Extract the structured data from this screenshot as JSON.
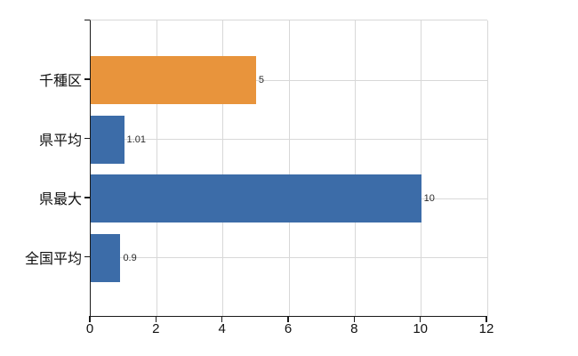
{
  "chart_data": {
    "type": "bar",
    "orientation": "horizontal",
    "title": "",
    "xlabel": "",
    "ylabel": "",
    "categories": [
      "千種区",
      "県平均",
      "県最大",
      "全国平均"
    ],
    "values": [
      5,
      1.01,
      10,
      0.9
    ],
    "value_labels": [
      "5",
      "1.01",
      "10",
      "0.9"
    ],
    "series": [
      {
        "name": "値",
        "values": [
          5,
          1.01,
          10,
          0.9
        ]
      }
    ],
    "bar_colors": [
      "#e8943c",
      "#3c6ca8",
      "#3c6ca8",
      "#3c6ca8"
    ],
    "xlim": [
      0,
      12
    ],
    "x_ticks": [
      "0",
      "2",
      "4",
      "6",
      "8",
      "10",
      "12"
    ],
    "x_tick_values": [
      0,
      2,
      4,
      6,
      8,
      10,
      12
    ],
    "grid": true,
    "legend": false,
    "colors": {
      "accent_orange": "#e8943c",
      "accent_blue": "#3c6ca8",
      "gridline": "#d8d8d8",
      "axis": "#1a1a1a",
      "label_text": "#111111",
      "value_text": "#2b2b2b",
      "background": "#ffffff"
    }
  }
}
